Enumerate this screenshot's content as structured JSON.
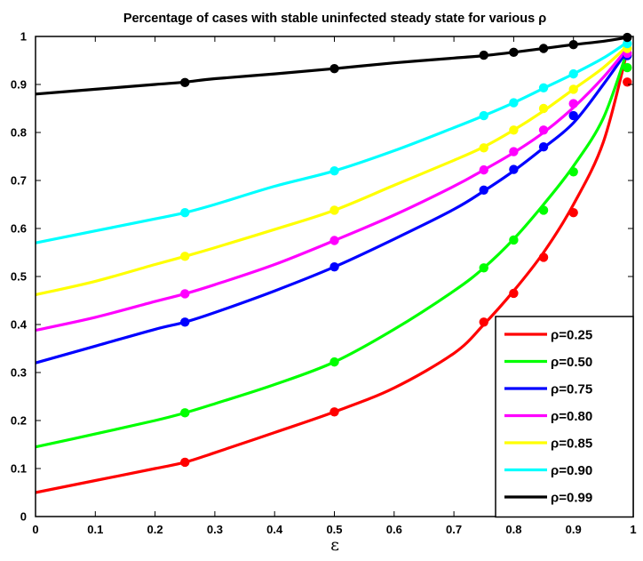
{
  "chart_data": {
    "type": "line",
    "title": "Percentage of cases with stable uninfected steady state for various ρ",
    "xlabel": "ε",
    "ylabel": "",
    "xlim": [
      0,
      1
    ],
    "ylim": [
      0,
      1
    ],
    "xticks": [
      "0",
      "0.1",
      "0.2",
      "0.3",
      "0.4",
      "0.5",
      "0.6",
      "0.7",
      "0.8",
      "0.9",
      "1"
    ],
    "yticks": [
      "0",
      "0.1",
      "0.2",
      "0.3",
      "0.4",
      "0.5",
      "0.6",
      "0.7",
      "0.8",
      "0.9",
      "1"
    ],
    "grid": false,
    "legend_position": "bottom-right",
    "series": [
      {
        "name": "ρ=0.25",
        "color": "#ff0000",
        "x": [
          0,
          0.1,
          0.2,
          0.25,
          0.3,
          0.4,
          0.5,
          0.6,
          0.7,
          0.75,
          0.8,
          0.85,
          0.9,
          0.95,
          0.99
        ],
        "y": [
          0.05,
          0.075,
          0.1,
          0.113,
          0.133,
          0.175,
          0.218,
          0.268,
          0.34,
          0.4,
          0.47,
          0.55,
          0.65,
          0.78,
          0.97
        ],
        "points_x": [
          0.25,
          0.5,
          0.75,
          0.8,
          0.85,
          0.9,
          0.99
        ],
        "points_y": [
          0.113,
          0.218,
          0.405,
          0.465,
          0.54,
          0.633,
          0.905
        ]
      },
      {
        "name": "ρ=0.50",
        "color": "#00ff00",
        "x": [
          0,
          0.1,
          0.2,
          0.25,
          0.3,
          0.4,
          0.5,
          0.6,
          0.7,
          0.75,
          0.8,
          0.85,
          0.9,
          0.95,
          0.99
        ],
        "y": [
          0.145,
          0.172,
          0.2,
          0.216,
          0.235,
          0.275,
          0.322,
          0.39,
          0.47,
          0.518,
          0.578,
          0.65,
          0.73,
          0.83,
          0.97
        ],
        "points_x": [
          0.25,
          0.5,
          0.75,
          0.8,
          0.85,
          0.9,
          0.99
        ],
        "points_y": [
          0.216,
          0.322,
          0.518,
          0.576,
          0.638,
          0.718,
          0.935
        ]
      },
      {
        "name": "ρ=0.75",
        "color": "#0000ff",
        "x": [
          0,
          0.1,
          0.2,
          0.25,
          0.3,
          0.4,
          0.5,
          0.6,
          0.7,
          0.75,
          0.8,
          0.85,
          0.9,
          0.95,
          0.99
        ],
        "y": [
          0.32,
          0.355,
          0.39,
          0.405,
          0.425,
          0.47,
          0.52,
          0.578,
          0.64,
          0.678,
          0.72,
          0.768,
          0.82,
          0.9,
          0.97
        ],
        "points_x": [
          0.25,
          0.5,
          0.75,
          0.8,
          0.85,
          0.9,
          0.99
        ],
        "points_y": [
          0.405,
          0.52,
          0.68,
          0.723,
          0.77,
          0.835,
          0.96
        ]
      },
      {
        "name": "ρ=0.80",
        "color": "#ff00ff",
        "x": [
          0,
          0.1,
          0.2,
          0.25,
          0.3,
          0.4,
          0.5,
          0.6,
          0.7,
          0.75,
          0.8,
          0.85,
          0.9,
          0.95,
          0.99
        ],
        "y": [
          0.388,
          0.415,
          0.448,
          0.464,
          0.483,
          0.525,
          0.575,
          0.628,
          0.688,
          0.722,
          0.758,
          0.8,
          0.852,
          0.915,
          0.975
        ],
        "points_x": [
          0.25,
          0.5,
          0.75,
          0.8,
          0.85,
          0.9,
          0.99
        ],
        "points_y": [
          0.464,
          0.575,
          0.722,
          0.76,
          0.805,
          0.86,
          0.965
        ]
      },
      {
        "name": "ρ=0.85",
        "color": "#ffff00",
        "x": [
          0,
          0.1,
          0.2,
          0.25,
          0.3,
          0.4,
          0.5,
          0.6,
          0.7,
          0.75,
          0.8,
          0.85,
          0.9,
          0.95,
          0.99
        ],
        "y": [
          0.462,
          0.49,
          0.525,
          0.542,
          0.56,
          0.598,
          0.638,
          0.69,
          0.742,
          0.77,
          0.805,
          0.845,
          0.89,
          0.935,
          0.98
        ],
        "points_x": [
          0.25,
          0.5,
          0.75,
          0.8,
          0.85,
          0.9,
          0.99
        ],
        "points_y": [
          0.542,
          0.638,
          0.768,
          0.805,
          0.85,
          0.89,
          0.975
        ]
      },
      {
        "name": "ρ=0.90",
        "color": "#00ffff",
        "x": [
          0,
          0.1,
          0.2,
          0.25,
          0.3,
          0.4,
          0.5,
          0.6,
          0.7,
          0.75,
          0.8,
          0.85,
          0.9,
          0.95,
          0.99
        ],
        "y": [
          0.57,
          0.595,
          0.62,
          0.633,
          0.65,
          0.688,
          0.72,
          0.762,
          0.81,
          0.835,
          0.862,
          0.892,
          0.922,
          0.955,
          0.988
        ],
        "points_x": [
          0.25,
          0.5,
          0.75,
          0.8,
          0.85,
          0.9,
          0.99
        ],
        "points_y": [
          0.633,
          0.72,
          0.835,
          0.862,
          0.893,
          0.922,
          0.985
        ]
      },
      {
        "name": "ρ=0.99",
        "color": "#000000",
        "x": [
          0,
          0.1,
          0.2,
          0.25,
          0.3,
          0.4,
          0.5,
          0.6,
          0.7,
          0.75,
          0.8,
          0.85,
          0.9,
          0.95,
          0.99
        ],
        "y": [
          0.88,
          0.89,
          0.9,
          0.905,
          0.912,
          0.922,
          0.933,
          0.945,
          0.955,
          0.96,
          0.967,
          0.975,
          0.983,
          0.99,
          0.998
        ],
        "points_x": [
          0.25,
          0.5,
          0.75,
          0.8,
          0.85,
          0.9,
          0.99
        ],
        "points_y": [
          0.904,
          0.933,
          0.961,
          0.967,
          0.975,
          0.983,
          0.998
        ]
      }
    ]
  }
}
